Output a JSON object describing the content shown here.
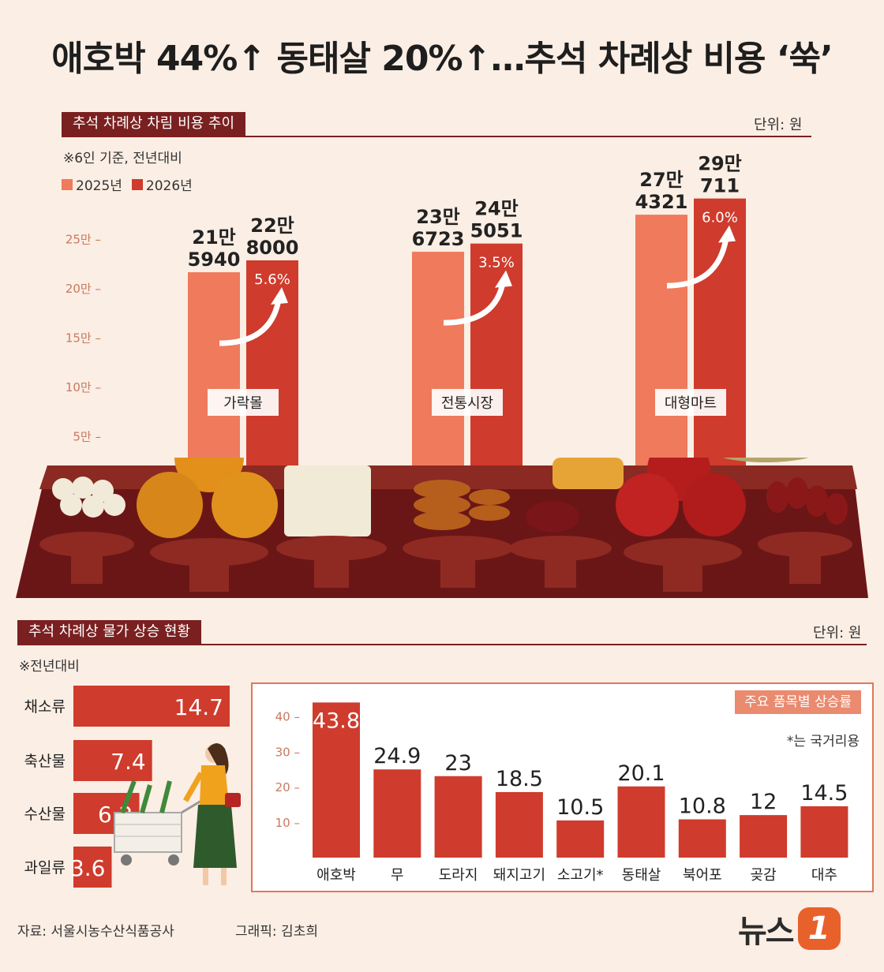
{
  "header": {
    "title": "애호박 44%↑ 동태살 20%↑…추석 차례상 비용 ‘쑥’"
  },
  "section1": {
    "label": "추석 차례상 차림 비용 추이",
    "unit": "단위: 원",
    "note": "※6인 기준, 전년대비",
    "legend": [
      "2025년",
      "2026년"
    ]
  },
  "section2": {
    "label": "추석 차례상 물가 상승 현황",
    "unit": "단위: 원",
    "note": "※전년대비",
    "panel_label": "주요 품목별 상승률",
    "panel_note": "*는 국거리용"
  },
  "footer": {
    "source": "자료: 서울시농수산식품공사",
    "graphic": "그래픽: 김초희",
    "logo_text": "뉴스1"
  },
  "colors": {
    "bar_2025": "#ef7a5c",
    "bar_2026": "#cf3b2c",
    "dark_red": "#7a2020",
    "accent_light": "#ea8a6e"
  },
  "chart_data": [
    {
      "type": "bar",
      "title": "추석 차례상 차림 비용 추이",
      "categories": [
        "가락몰",
        "전통시장",
        "대형마트"
      ],
      "series": [
        {
          "name": "2025년",
          "values": [
            215940,
            236723,
            274321
          ],
          "labels": [
            [
              "21만",
              "5940"
            ],
            [
              "23만",
              "6723"
            ],
            [
              "27만",
              "4321"
            ]
          ]
        },
        {
          "name": "2026년",
          "values": [
            228000,
            245051,
            290711
          ],
          "labels": [
            [
              "22만",
              "8000"
            ],
            [
              "24만",
              "5051"
            ],
            [
              "29만",
              "711"
            ]
          ]
        }
      ],
      "growth_labels": [
        "5.6%",
        "3.5%",
        "6.0%"
      ],
      "yticks": [
        50000,
        100000,
        150000,
        200000,
        250000
      ],
      "ytick_labels": [
        "5만",
        "10만",
        "15만",
        "20만",
        "25만"
      ],
      "ylim": [
        0,
        300000
      ]
    },
    {
      "type": "bar",
      "orientation": "horizontal",
      "title": "추석 차례상 물가 상승 현황",
      "categories": [
        "채소류",
        "축산물",
        "수산물",
        "과일류"
      ],
      "values": [
        14.7,
        7.4,
        6.2,
        3.6
      ]
    },
    {
      "type": "bar",
      "title": "주요 품목별 상승률",
      "categories": [
        "애호박",
        "무",
        "도라지",
        "돼지고기",
        "소고기*",
        "동태살",
        "북어포",
        "곶감",
        "대추"
      ],
      "values": [
        43.8,
        24.9,
        23,
        18.5,
        10.5,
        20.1,
        10.8,
        12,
        14.5
      ],
      "yticks": [
        10,
        20,
        30,
        40
      ],
      "ylim": [
        0,
        45
      ]
    }
  ]
}
